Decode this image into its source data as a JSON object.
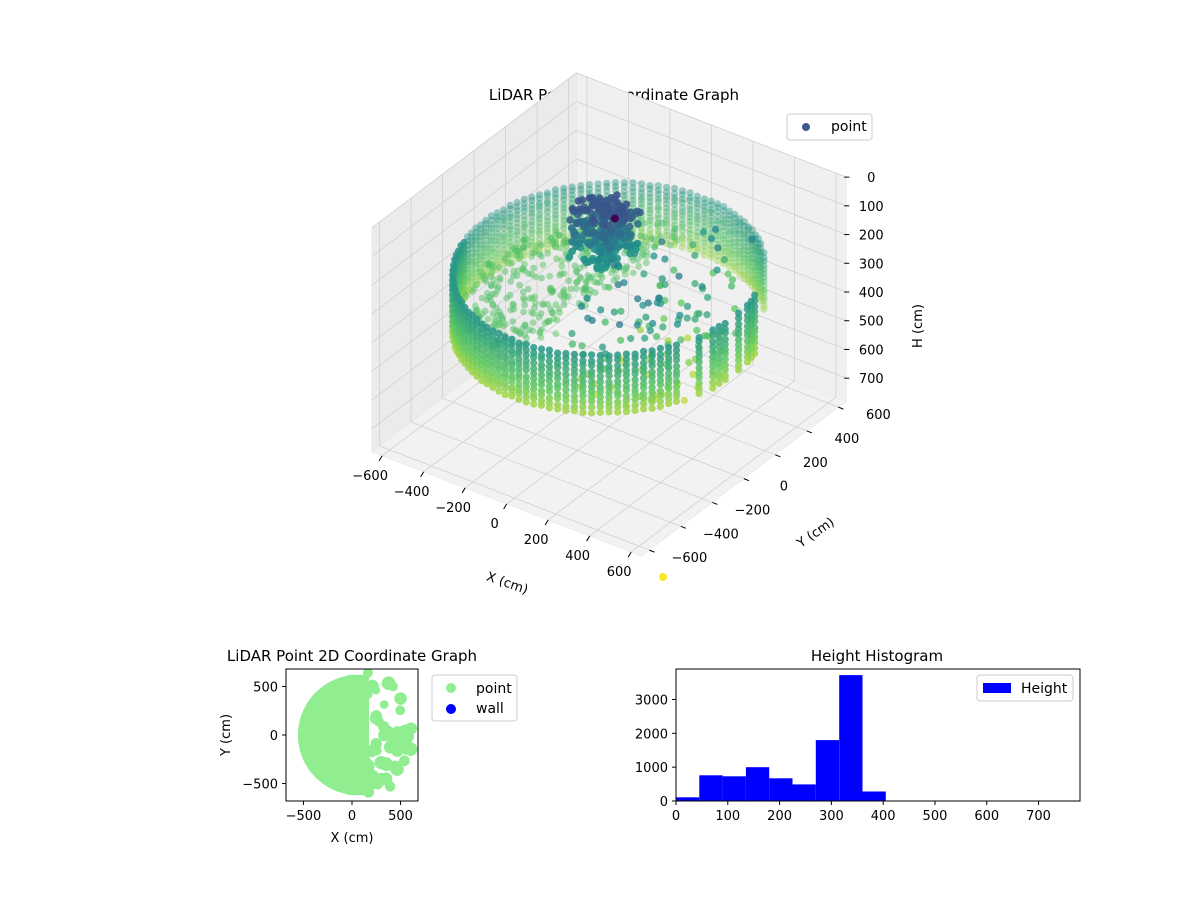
{
  "colors": {
    "point_legend": "#3b5b92",
    "scatter2d_point": "#90ee90",
    "scatter2d_wall": "#0000ff",
    "histogram_bar": "#0000ff",
    "viridis": [
      "#440154",
      "#3b528b",
      "#21918c",
      "#5ec962",
      "#fde725"
    ]
  },
  "chart_data": [
    {
      "type": "scatter",
      "title": "LiDAR Point 3D Coordinate Graph",
      "xlabel": "X (cm)",
      "ylabel": "Y (cm)",
      "zlabel": "H (cm)",
      "x_ticks": [
        "−600",
        "−400",
        "−200",
        "0",
        "200",
        "400",
        "600"
      ],
      "y_ticks": [
        "−600",
        "−400",
        "−200",
        "0",
        "200",
        "400",
        "600"
      ],
      "z_ticks": [
        "0",
        "100",
        "200",
        "300",
        "400",
        "500",
        "600",
        "700"
      ],
      "xlim": [
        -650,
        650
      ],
      "ylim": [
        -650,
        650
      ],
      "zlim": [
        0,
        780
      ],
      "z_inverted": true,
      "grid": true,
      "legend": [
        "point"
      ],
      "legend_position": "upper-right",
      "colormap": "viridis",
      "series": [
        {
          "name": "point",
          "description_values": {
            "wall_radius_cm": 600,
            "wall_height_range_cm": [
              270,
              420
            ],
            "cluster_center": [
              -80,
              30
            ],
            "cluster_height_range_cm": [
              60,
              220
            ]
          }
        }
      ]
    },
    {
      "type": "scatter",
      "title": "LiDAR Point 2D Coordinate Graph",
      "xlabel": "X (cm)",
      "ylabel": "Y (cm)",
      "x_ticks": [
        "−500",
        "0",
        "500"
      ],
      "y_ticks": [
        "−500",
        "0",
        "500"
      ],
      "xlim": [
        -680,
        680
      ],
      "ylim": [
        -680,
        680
      ],
      "legend": [
        "point",
        "wall"
      ],
      "legend_position": "outside-upper-right",
      "series": [
        {
          "name": "point",
          "shape": "filled disc radius ~620 cm, ragged right edge for x > 150"
        },
        {
          "name": "wall",
          "values": []
        }
      ]
    },
    {
      "type": "bar",
      "title": "Height Histogram",
      "xlabel": "",
      "ylabel": "",
      "legend": [
        "Height"
      ],
      "legend_position": "upper-right",
      "x_ticks": [
        "0",
        "100",
        "200",
        "300",
        "400",
        "500",
        "600",
        "700"
      ],
      "y_ticks": [
        "0",
        "1000",
        "2000",
        "3000"
      ],
      "xlim": [
        0,
        780
      ],
      "ylim": [
        0,
        3900
      ],
      "bin_edges": [
        0,
        45,
        90,
        135,
        180,
        225,
        270,
        315,
        360,
        405
      ],
      "values": [
        110,
        760,
        730,
        1000,
        670,
        490,
        1800,
        3720,
        280
      ],
      "series": [
        {
          "name": "Height"
        }
      ]
    }
  ]
}
